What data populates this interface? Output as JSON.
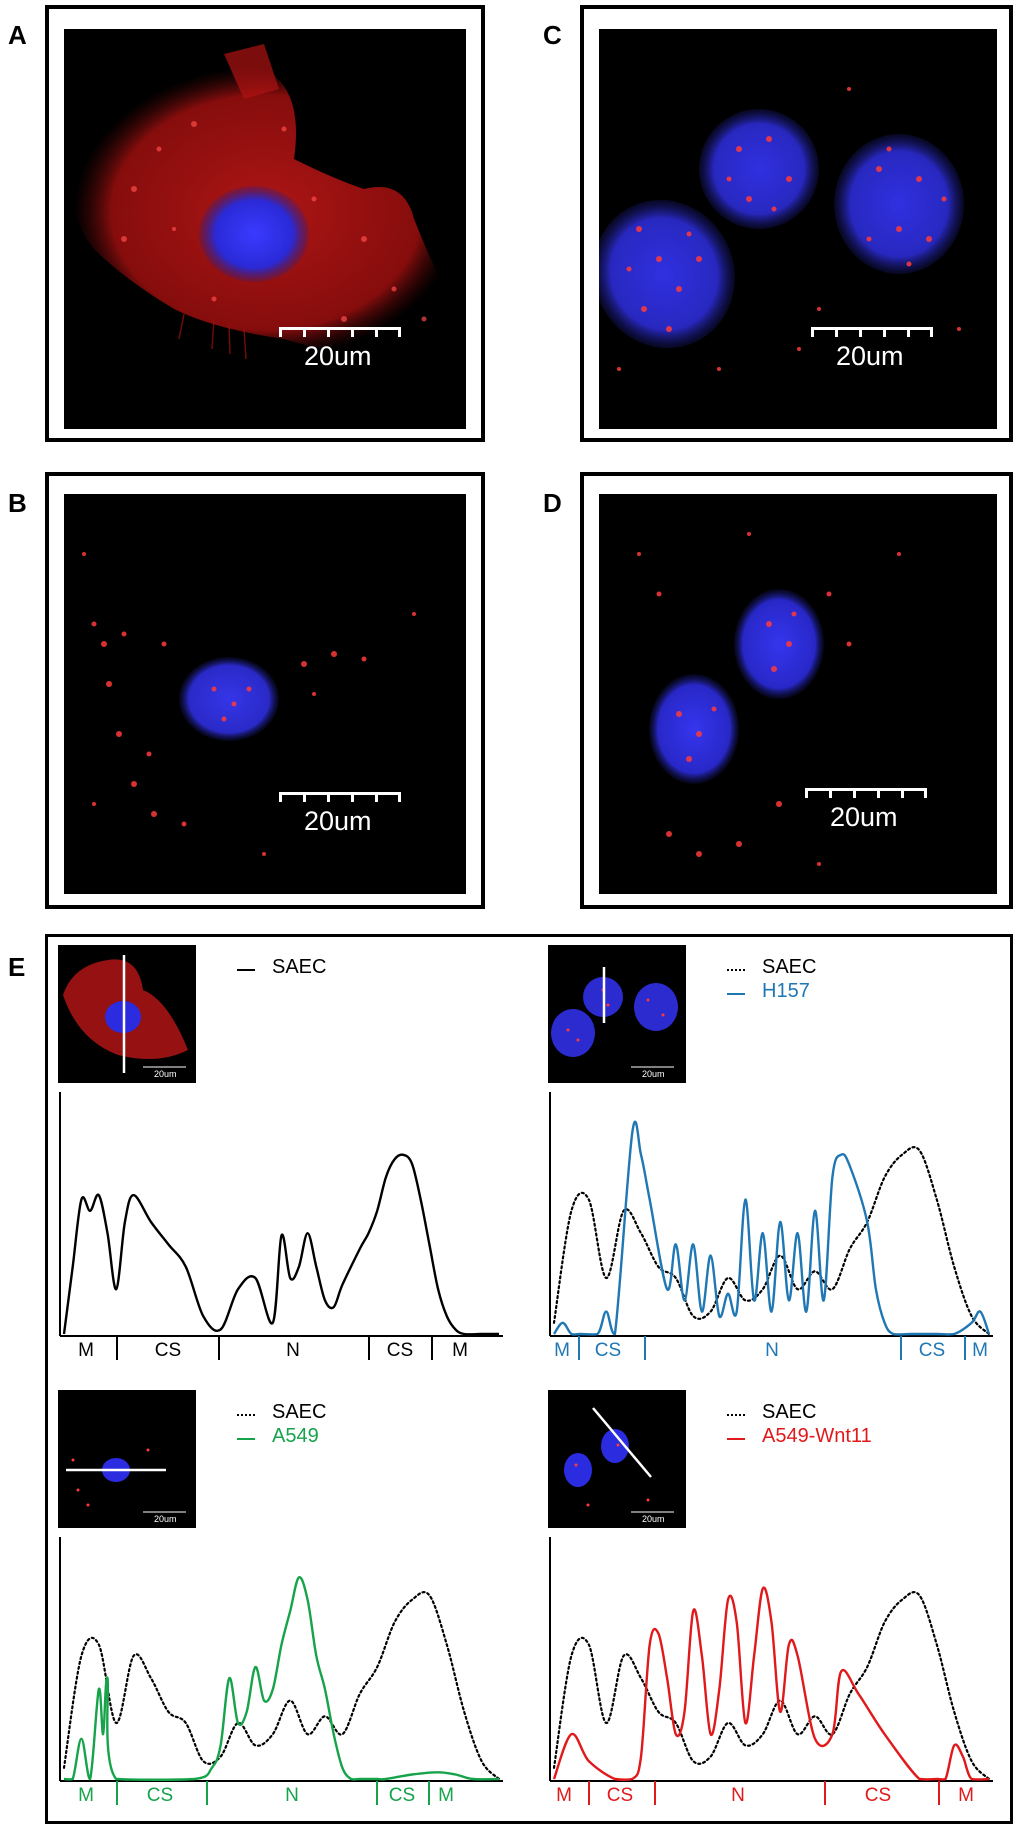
{
  "panels": {
    "A": {
      "letter": "A",
      "scale_label": "20um"
    },
    "B": {
      "letter": "B",
      "scale_label": "20um"
    },
    "C": {
      "letter": "C",
      "scale_label": "20um"
    },
    "D": {
      "letter": "D",
      "scale_label": "20um"
    },
    "E": {
      "letter": "E"
    }
  },
  "thumbs": {
    "t1": "20um",
    "t2": "20um",
    "t3": "20um",
    "t4": "20um"
  },
  "colors": {
    "saec": "#000000",
    "h157": "#1f77b4",
    "a549": "#16a34a",
    "a549_wnt11": "#e0191b",
    "stain_red": "#e3171e",
    "nucleus_blue": "#2f2fdc"
  },
  "legends": {
    "p1": [
      {
        "label": "SAEC",
        "style": "solid",
        "color": "#000000"
      }
    ],
    "p2": [
      {
        "label": "SAEC",
        "style": "dotted",
        "color": "#000000"
      },
      {
        "label": "H157",
        "style": "solid",
        "color": "#1f77b4"
      }
    ],
    "p3": [
      {
        "label": "SAEC",
        "style": "dotted",
        "color": "#000000"
      },
      {
        "label": "A549",
        "style": "solid",
        "color": "#16a34a"
      }
    ],
    "p4": [
      {
        "label": "SAEC",
        "style": "dotted",
        "color": "#000000"
      },
      {
        "label": "A549-Wnt11",
        "style": "solid",
        "color": "#e0191b"
      }
    ]
  },
  "regions": {
    "p1": {
      "labels": [
        "M",
        "CS",
        "N",
        "CS",
        "M"
      ],
      "color": "#000000"
    },
    "p2": {
      "labels": [
        "M",
        "CS",
        "N",
        "CS",
        "M"
      ],
      "color": "#1f77b4"
    },
    "p3": {
      "labels": [
        "M",
        "CS",
        "N",
        "CS",
        "M"
      ],
      "color": "#16a34a"
    },
    "p4": {
      "labels": [
        "M",
        "CS",
        "N",
        "CS",
        "M"
      ],
      "color": "#e0191b"
    }
  },
  "chart_data": [
    {
      "type": "line",
      "title": "",
      "xlabel": "",
      "ylabel": "",
      "series": [
        {
          "name": "SAEC",
          "color": "#000000",
          "style": "solid",
          "x": [
            0,
            2,
            4,
            6,
            8,
            10,
            12,
            14,
            16,
            20,
            24,
            28,
            32,
            36,
            40,
            44,
            48,
            50,
            52,
            54,
            56,
            58,
            60,
            62,
            64,
            68,
            70,
            72,
            74,
            76,
            78,
            80,
            82,
            84,
            86,
            88,
            90,
            92,
            96,
            100
          ],
          "values": [
            0,
            30,
            60,
            55,
            62,
            45,
            20,
            50,
            62,
            50,
            40,
            30,
            8,
            2,
            20,
            25,
            5,
            44,
            25,
            30,
            45,
            30,
            15,
            12,
            22,
            38,
            45,
            55,
            70,
            78,
            80,
            76,
            60,
            40,
            20,
            8,
            2,
            0,
            0,
            0
          ]
        }
      ]
    },
    {
      "type": "line",
      "title": "",
      "xlabel": "",
      "ylabel": "",
      "series": [
        {
          "name": "SAEC",
          "color": "#000000",
          "style": "dotted",
          "x": [
            0,
            4,
            8,
            12,
            16,
            20,
            24,
            28,
            32,
            36,
            40,
            44,
            48,
            52,
            56,
            60,
            64,
            68,
            72,
            76,
            80,
            84,
            88,
            92,
            96,
            100
          ],
          "values": [
            5,
            55,
            60,
            25,
            55,
            45,
            30,
            25,
            8,
            10,
            25,
            15,
            20,
            35,
            20,
            28,
            20,
            38,
            50,
            70,
            80,
            82,
            60,
            30,
            8,
            0
          ]
        },
        {
          "name": "H157",
          "color": "#1f77b4",
          "style": "solid",
          "x": [
            0,
            2,
            4,
            6,
            10,
            12,
            14,
            18,
            20,
            22,
            26,
            28,
            30,
            32,
            34,
            36,
            38,
            40,
            42,
            44,
            46,
            48,
            50,
            52,
            54,
            56,
            58,
            60,
            62,
            64,
            66,
            68,
            72,
            74,
            76,
            78,
            82,
            84,
            88,
            92,
            96,
            98,
            100
          ],
          "values": [
            0,
            5,
            0,
            0,
            0,
            10,
            0,
            90,
            80,
            60,
            20,
            40,
            15,
            40,
            10,
            35,
            8,
            18,
            10,
            60,
            15,
            45,
            10,
            50,
            15,
            45,
            10,
            55,
            15,
            70,
            80,
            75,
            50,
            20,
            5,
            0,
            0,
            0,
            0,
            0,
            5,
            10,
            0
          ]
        }
      ]
    },
    {
      "type": "line",
      "title": "",
      "xlabel": "",
      "ylabel": "",
      "series": [
        {
          "name": "SAEC",
          "color": "#000000",
          "style": "dotted",
          "x": [
            0,
            4,
            8,
            12,
            16,
            20,
            24,
            28,
            32,
            36,
            40,
            44,
            48,
            52,
            56,
            60,
            64,
            68,
            72,
            76,
            80,
            84,
            88,
            92,
            96,
            100
          ],
          "values": [
            5,
            55,
            60,
            25,
            55,
            45,
            30,
            25,
            8,
            10,
            25,
            15,
            20,
            35,
            20,
            28,
            20,
            38,
            50,
            70,
            80,
            82,
            60,
            30,
            8,
            0
          ]
        },
        {
          "name": "A549",
          "color": "#16a34a",
          "style": "solid",
          "x": [
            0,
            2,
            4,
            6,
            8,
            9,
            10,
            12,
            30,
            34,
            36,
            38,
            40,
            42,
            44,
            46,
            48,
            50,
            52,
            54,
            56,
            58,
            60,
            62,
            64,
            66,
            68,
            70,
            72,
            74,
            80,
            86,
            90,
            94,
            100
          ],
          "values": [
            0,
            0,
            18,
            0,
            40,
            20,
            45,
            0,
            0,
            5,
            15,
            45,
            25,
            30,
            50,
            35,
            40,
            60,
            75,
            90,
            80,
            55,
            40,
            20,
            5,
            0,
            0,
            0,
            0,
            0,
            2,
            3,
            2,
            0,
            0
          ]
        }
      ]
    },
    {
      "type": "line",
      "title": "",
      "xlabel": "",
      "ylabel": "",
      "series": [
        {
          "name": "SAEC",
          "color": "#000000",
          "style": "dotted",
          "x": [
            0,
            4,
            8,
            12,
            16,
            20,
            24,
            28,
            32,
            36,
            40,
            44,
            48,
            52,
            56,
            60,
            64,
            68,
            72,
            76,
            80,
            84,
            88,
            92,
            96,
            100
          ],
          "values": [
            5,
            55,
            60,
            25,
            55,
            45,
            30,
            25,
            8,
            10,
            25,
            15,
            20,
            35,
            20,
            28,
            20,
            38,
            50,
            70,
            80,
            82,
            60,
            30,
            8,
            0
          ]
        },
        {
          "name": "A549-Wnt11",
          "color": "#e0191b",
          "style": "solid",
          "x": [
            0,
            4,
            8,
            14,
            18,
            20,
            22,
            24,
            26,
            28,
            30,
            32,
            34,
            36,
            38,
            40,
            42,
            44,
            46,
            48,
            50,
            52,
            54,
            56,
            60,
            64,
            66,
            70,
            76,
            84,
            88,
            90,
            92,
            94,
            96,
            100
          ],
          "values": [
            0,
            20,
            8,
            0,
            0,
            10,
            60,
            65,
            45,
            20,
            30,
            75,
            55,
            20,
            40,
            80,
            70,
            25,
            55,
            85,
            70,
            30,
            60,
            55,
            18,
            20,
            48,
            38,
            20,
            0,
            0,
            0,
            15,
            10,
            0,
            0
          ]
        }
      ]
    }
  ]
}
